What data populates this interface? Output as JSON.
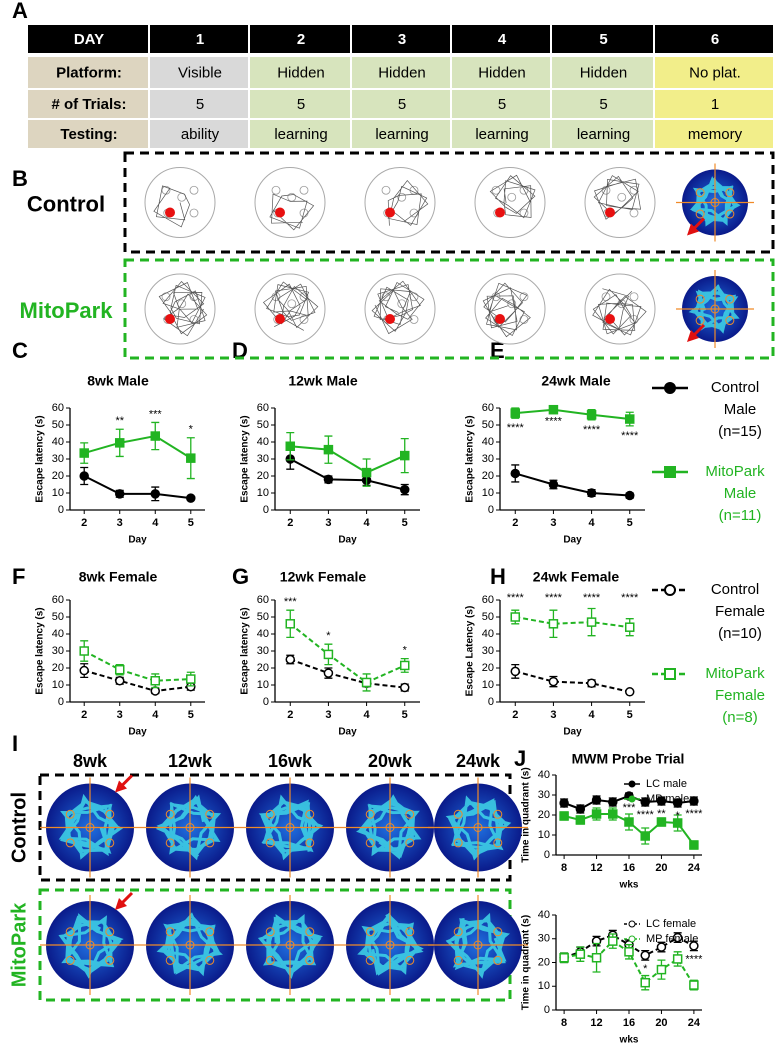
{
  "panel_labels": [
    "A",
    "B",
    "C",
    "D",
    "E",
    "F",
    "G",
    "H",
    "I",
    "J"
  ],
  "table": {
    "header": [
      "DAY",
      1,
      2,
      3,
      4,
      5,
      6
    ],
    "rows": [
      [
        "Platform:",
        "Visible",
        "Hidden",
        "Hidden",
        "Hidden",
        "Hidden",
        "No plat."
      ],
      [
        "# of Trials:",
        5,
        5,
        5,
        5,
        5,
        1
      ],
      [
        "Testing:",
        "ability",
        "learning",
        "learning",
        "learning",
        "learning",
        "memory"
      ]
    ]
  },
  "panel_b": {
    "rows": [
      "Control",
      "MitoPark"
    ]
  },
  "legends": {
    "male": [
      [
        "Control",
        "Male",
        "(n=15)"
      ],
      [
        "MitoPark",
        "Male",
        "(n=11)"
      ]
    ],
    "female": [
      [
        "Control",
        "Female",
        "(n=10)"
      ],
      [
        "MitoPark",
        "Female",
        "(n=8)"
      ]
    ]
  },
  "panel_i": {
    "columns": [
      "8wk",
      "12wk",
      "16wk",
      "20wk",
      "24wk"
    ],
    "rows": [
      "Control",
      "MitoPark"
    ]
  },
  "chart_data": [
    {
      "type": "line",
      "title": "8wk Male",
      "xlabel": "Day",
      "ylabel": "Escape latency (s)",
      "x": [
        2,
        3,
        4,
        5
      ],
      "xlim": [
        1.6,
        5.4
      ],
      "xticks": [
        2,
        3,
        4,
        5
      ],
      "ylim": [
        0,
        60
      ],
      "yticks": [
        0,
        10,
        20,
        30,
        40,
        50,
        60
      ],
      "series": [
        {
          "color": "#000000",
          "marker": "circle",
          "filled": true,
          "dash": "solid",
          "values": [
            20,
            9.5,
            9.5,
            7
          ],
          "errors": [
            5,
            2,
            4,
            1
          ]
        },
        {
          "color": "#22b422",
          "marker": "square",
          "filled": true,
          "dash": "solid",
          "values": [
            33.5,
            39.5,
            43.5,
            30.5
          ],
          "errors": [
            6,
            8,
            8,
            12
          ],
          "annotations": [
            null,
            "**",
            "***",
            "*"
          ]
        }
      ]
    },
    {
      "type": "line",
      "title": "12wk Male",
      "xlabel": "Day",
      "ylabel": "Escape latency (s)",
      "x": [
        2,
        3,
        4,
        5
      ],
      "xlim": [
        1.6,
        5.4
      ],
      "xticks": [
        2,
        3,
        4,
        5
      ],
      "ylim": [
        0,
        60
      ],
      "yticks": [
        0,
        10,
        20,
        30,
        40,
        50,
        60
      ],
      "series": [
        {
          "color": "#000000",
          "marker": "circle",
          "filled": true,
          "dash": "solid",
          "values": [
            30,
            18,
            17.5,
            12
          ],
          "errors": [
            6,
            2,
            3,
            3
          ]
        },
        {
          "color": "#22b422",
          "marker": "square",
          "filled": true,
          "dash": "solid",
          "values": [
            37.5,
            35.5,
            22,
            32
          ],
          "errors": [
            8,
            8,
            8,
            10
          ]
        }
      ]
    },
    {
      "type": "line",
      "title": "24wk Male",
      "xlabel": "Day",
      "ylabel": "Escape latency (s)",
      "x": [
        2,
        3,
        4,
        5
      ],
      "xlim": [
        1.6,
        5.4
      ],
      "xticks": [
        2,
        3,
        4,
        5
      ],
      "ylim": [
        0,
        60
      ],
      "yticks": [
        0,
        10,
        20,
        30,
        40,
        50,
        60
      ],
      "series": [
        {
          "color": "#000000",
          "marker": "circle",
          "filled": true,
          "dash": "solid",
          "values": [
            21.5,
            15,
            10,
            8.5
          ],
          "errors": [
            5,
            2.5,
            2,
            1.5
          ]
        },
        {
          "color": "#22b422",
          "marker": "square",
          "filled": true,
          "dash": "solid",
          "values": [
            57,
            59,
            56,
            53.5
          ],
          "errors": [
            3,
            1,
            3,
            4
          ],
          "annotations": [
            "****",
            "****",
            "****",
            "****"
          ]
        }
      ]
    },
    {
      "type": "line",
      "title": "8wk Female",
      "xlabel": "Day",
      "ylabel": "Escape latency (s)",
      "x": [
        2,
        3,
        4,
        5
      ],
      "xlim": [
        1.6,
        5.4
      ],
      "xticks": [
        2,
        3,
        4,
        5
      ],
      "ylim": [
        0,
        60
      ],
      "yticks": [
        0,
        10,
        20,
        30,
        40,
        50,
        60
      ],
      "series": [
        {
          "color": "#000000",
          "marker": "circle",
          "filled": false,
          "dash": "dashed",
          "values": [
            18.5,
            12.5,
            6.5,
            9
          ],
          "errors": [
            4,
            2,
            1.5,
            2
          ]
        },
        {
          "color": "#22b422",
          "marker": "square",
          "filled": false,
          "dash": "dashed",
          "values": [
            30,
            19,
            12.5,
            13.5
          ],
          "errors": [
            6,
            3,
            4,
            4
          ]
        }
      ]
    },
    {
      "type": "line",
      "title": "12wk Female",
      "xlabel": "Day",
      "ylabel": "Escape latency (s)",
      "x": [
        2,
        3,
        4,
        5
      ],
      "xlim": [
        1.6,
        5.4
      ],
      "xticks": [
        2,
        3,
        4,
        5
      ],
      "ylim": [
        0,
        60
      ],
      "yticks": [
        0,
        10,
        20,
        30,
        40,
        50,
        60
      ],
      "series": [
        {
          "color": "#000000",
          "marker": "circle",
          "filled": false,
          "dash": "dashed",
          "values": [
            25,
            17,
            11,
            8.5
          ],
          "errors": [
            2.5,
            3,
            2,
            2
          ]
        },
        {
          "color": "#22b422",
          "marker": "square",
          "filled": false,
          "dash": "dashed",
          "values": [
            46,
            28,
            11.5,
            21.5
          ],
          "errors": [
            8,
            6,
            5,
            4
          ],
          "annotations": [
            "***",
            "*",
            null,
            "*"
          ]
        }
      ]
    },
    {
      "type": "line",
      "title": "24wk Female",
      "xlabel": "Day",
      "ylabel": "Escape Latency (s)",
      "x": [
        2,
        3,
        4,
        5
      ],
      "xlim": [
        1.6,
        5.4
      ],
      "xticks": [
        2,
        3,
        4,
        5
      ],
      "ylim": [
        0,
        60
      ],
      "yticks": [
        0,
        10,
        20,
        30,
        40,
        50,
        60
      ],
      "series": [
        {
          "color": "#000000",
          "marker": "circle",
          "filled": false,
          "dash": "dashed",
          "values": [
            18,
            12,
            11,
            6
          ],
          "errors": [
            4,
            3,
            2,
            1
          ]
        },
        {
          "color": "#22b422",
          "marker": "square",
          "filled": false,
          "dash": "dashed",
          "values": [
            50,
            46,
            47,
            44
          ],
          "errors": [
            4,
            8,
            8,
            5
          ],
          "annotations": [
            "****",
            "****",
            "****",
            "****"
          ]
        }
      ]
    },
    {
      "type": "line",
      "title": "MWM Probe Trial",
      "xlabel": "wks",
      "ylabel": "Time in quadrant (s)",
      "x": [
        8,
        10,
        12,
        14,
        16,
        18,
        20,
        22,
        24
      ],
      "xlim": [
        7,
        25
      ],
      "xticks": [
        8,
        12,
        16,
        20,
        24
      ],
      "ylim": [
        0,
        40
      ],
      "yticks": [
        0,
        10,
        20,
        30,
        40
      ],
      "series": [
        {
          "name": "LC male",
          "color": "#000000",
          "marker": "circle",
          "filled": true,
          "dash": "solid",
          "values": [
            26,
            23,
            27.5,
            26.5,
            29.5,
            26.5,
            27,
            26,
            27
          ],
          "errors": [
            2,
            2,
            2,
            2,
            1.5,
            2,
            2,
            2,
            2
          ]
        },
        {
          "name": "MP male",
          "color": "#22b422",
          "marker": "square",
          "filled": true,
          "dash": "solid",
          "values": [
            19.5,
            17.5,
            20.5,
            20.5,
            16.5,
            9.5,
            16.5,
            16,
            5
          ],
          "errors": [
            2,
            2,
            3,
            3,
            4,
            4,
            2,
            4,
            2
          ],
          "annotations": [
            null,
            null,
            null,
            null,
            "***",
            "****",
            "**",
            "*",
            "****"
          ]
        }
      ]
    },
    {
      "type": "line",
      "xlabel": "wks",
      "ylabel": "Time in quadrant (s)",
      "x": [
        8,
        10,
        12,
        14,
        16,
        18,
        20,
        22,
        24
      ],
      "xlim": [
        7,
        25
      ],
      "xticks": [
        8,
        12,
        16,
        20,
        24
      ],
      "ylim": [
        0,
        40
      ],
      "yticks": [
        0,
        10,
        20,
        30,
        40
      ],
      "series": [
        {
          "name": "LC female",
          "color": "#000000",
          "marker": "circle",
          "filled": false,
          "dash": "dashed",
          "values": [
            22,
            24.5,
            29,
            31.5,
            27.5,
            23,
            26.5,
            30.5,
            27
          ],
          "errors": [
            2,
            2,
            2,
            2,
            2,
            2,
            2,
            2,
            2
          ]
        },
        {
          "name": "MP female",
          "color": "#22b422",
          "marker": "square",
          "filled": false,
          "dash": "dashed",
          "values": [
            22,
            23.5,
            22,
            29,
            24.5,
            11.5,
            17,
            21.5,
            10.5
          ],
          "errors": [
            2,
            3,
            6,
            3,
            3,
            3,
            4,
            3,
            2
          ],
          "annotations": [
            null,
            null,
            null,
            null,
            null,
            "*",
            null,
            null,
            "****"
          ]
        }
      ]
    }
  ]
}
